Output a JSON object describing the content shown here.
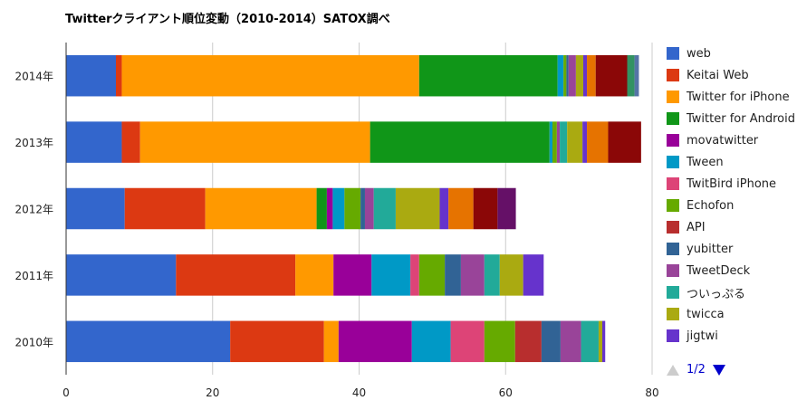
{
  "chart_data": {
    "type": "bar",
    "orientation": "horizontal",
    "stacked": true,
    "title": "Twitterクライアント順位変動（2010-2014）SATOX調べ",
    "categories": [
      "2014年",
      "2013年",
      "2012年",
      "2011年",
      "2010年"
    ],
    "xlim": [
      0,
      80
    ],
    "xticks": [
      "0",
      "20",
      "40",
      "60",
      "80"
    ],
    "grid": true,
    "legend_position": "right",
    "series": [
      {
        "name": "web",
        "color": "#3366cc",
        "values": [
          6.8,
          7.6,
          8.0,
          15.0,
          22.4
        ]
      },
      {
        "name": "Keitai Web",
        "color": "#dc3912",
        "values": [
          0.8,
          2.5,
          11.0,
          16.3,
          12.8
        ]
      },
      {
        "name": "Twitter for iPhone",
        "color": "#ff9900",
        "values": [
          40.6,
          31.4,
          15.2,
          5.2,
          2.0
        ]
      },
      {
        "name": "Twitter for Android",
        "color": "#109618",
        "values": [
          18.9,
          24.5,
          1.4,
          0.0,
          0.0
        ]
      },
      {
        "name": "movatwitter",
        "color": "#990099",
        "values": [
          0.0,
          0.0,
          0.8,
          5.2,
          10.0
        ]
      },
      {
        "name": "Tween",
        "color": "#0099c6",
        "values": [
          0.8,
          0.4,
          1.6,
          5.3,
          5.3
        ]
      },
      {
        "name": "TwitBird iPhone",
        "color": "#dd4477",
        "values": [
          0.0,
          0.0,
          0.0,
          1.2,
          4.6
        ]
      },
      {
        "name": "Echofon",
        "color": "#66aa00",
        "values": [
          0.4,
          0.6,
          2.2,
          3.5,
          4.2
        ]
      },
      {
        "name": "API",
        "color": "#b82e2e",
        "values": [
          0.0,
          0.0,
          0.0,
          0.0,
          3.6
        ]
      },
      {
        "name": "yubitter",
        "color": "#316395",
        "values": [
          0.3,
          0.0,
          0.6,
          2.2,
          2.6
        ]
      },
      {
        "name": "TweetDeck",
        "color": "#994499",
        "values": [
          1.0,
          0.4,
          1.2,
          3.2,
          2.8
        ]
      },
      {
        "name": "ついっぷる",
        "color": "#22aa99",
        "values": [
          0.0,
          1.0,
          3.0,
          2.1,
          2.4
        ]
      },
      {
        "name": "twicca",
        "color": "#aaaa11",
        "values": [
          1.0,
          2.1,
          6.0,
          3.2,
          0.5
        ]
      },
      {
        "name": "jigtwi",
        "color": "#6633cc",
        "values": [
          0.5,
          0.6,
          1.2,
          2.8,
          0.4
        ]
      },
      {
        "name": "",
        "color": "#e67300",
        "values": [
          1.2,
          2.9,
          3.4,
          0.0,
          0.0
        ]
      },
      {
        "name": "",
        "color": "#8b0707",
        "values": [
          4.3,
          4.5,
          3.3,
          0.0,
          0.0
        ]
      },
      {
        "name": "",
        "color": "#651067",
        "values": [
          0.0,
          0.0,
          2.5,
          0.0,
          0.0
        ]
      },
      {
        "name": "",
        "color": "#329262",
        "values": [
          1.0,
          0.0,
          0.0,
          0.0,
          0.0
        ]
      },
      {
        "name": "",
        "color": "#5574a6",
        "values": [
          0.6,
          0.0,
          0.0,
          0.0,
          0.0
        ]
      }
    ]
  },
  "legend": {
    "items": [
      "web",
      "Keitai Web",
      "Twitter for iPhone",
      "Twitter for Android",
      "movatwitter",
      "Tween",
      "TwitBird iPhone",
      "Echofon",
      "API",
      "yubitter",
      "TweetDeck",
      "ついっぷる",
      "twicca",
      "jigtwi"
    ],
    "colors": [
      "#3366cc",
      "#dc3912",
      "#ff9900",
      "#109618",
      "#990099",
      "#0099c6",
      "#dd4477",
      "#66aa00",
      "#b82e2e",
      "#316395",
      "#994499",
      "#22aa99",
      "#aaaa11",
      "#6633cc"
    ],
    "page": "1/2"
  }
}
